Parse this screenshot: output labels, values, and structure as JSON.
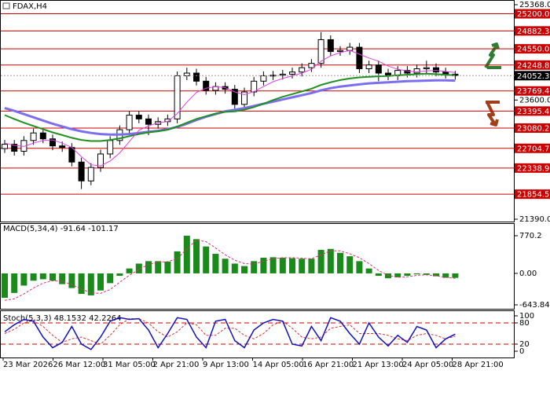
{
  "chart_data": [
    {
      "type": "candlestick",
      "title": "FDAX,H4",
      "open": [
        22700,
        22780,
        22650,
        22850,
        22990,
        22880,
        22750,
        22720,
        22450,
        22100,
        22350,
        22600,
        22850,
        23050,
        23320,
        23250,
        23150,
        23200,
        23250,
        24050,
        24100,
        23950,
        23780,
        23850,
        23800,
        23520,
        23750,
        23950,
        24050,
        24060,
        24080,
        24120,
        24200,
        24280,
        24720,
        24500,
        24520,
        24580,
        24180,
        24250,
        24100,
        24050,
        24150,
        24100,
        24180,
        24200,
        24120,
        24080
      ],
      "high": [
        22860,
        22860,
        22930,
        23070,
        23070,
        22960,
        22830,
        22800,
        22530,
        22430,
        22680,
        22930,
        23130,
        23400,
        23400,
        23330,
        23280,
        23330,
        24130,
        24200,
        24180,
        24030,
        23930,
        23930,
        23880,
        23830,
        24030,
        24130,
        24140,
        24160,
        24200,
        24280,
        24360,
        24860,
        24800,
        24600,
        24660,
        24660,
        24330,
        24330,
        24180,
        24230,
        24230,
        24260,
        24330,
        24280,
        24200,
        24140
      ],
      "low": [
        22620,
        22570,
        22570,
        22770,
        22800,
        22670,
        22640,
        22370,
        21950,
        22020,
        22270,
        22520,
        22770,
        22970,
        23170,
        22950,
        23070,
        23120,
        23170,
        23970,
        23870,
        23700,
        23700,
        23720,
        23440,
        23440,
        23670,
        23870,
        23970,
        23980,
        24000,
        24040,
        24120,
        24200,
        24420,
        24420,
        24440,
        24100,
        24100,
        23950,
        23970,
        23970,
        24020,
        24020,
        24100,
        24040,
        24000,
        23980
      ],
      "close": [
        22780,
        22650,
        22850,
        22990,
        22880,
        22750,
        22720,
        22450,
        22100,
        22350,
        22600,
        22850,
        23050,
        23320,
        23250,
        23150,
        23200,
        23250,
        24050,
        24100,
        23950,
        23780,
        23850,
        23800,
        23520,
        23750,
        23950,
        24050,
        24060,
        24080,
        24120,
        24200,
        24280,
        24720,
        24500,
        24520,
        24580,
        24180,
        24250,
        24100,
        24050,
        24150,
        24100,
        24180,
        24200,
        24120,
        24080,
        24052.3
      ],
      "overlays": [
        {
          "color": "#7b6ef0",
          "values": [
            23450,
            23400,
            23340,
            23280,
            23220,
            23160,
            23110,
            23060,
            23020,
            22990,
            22970,
            22960,
            22960,
            22970,
            22990,
            23010,
            23030,
            23060,
            23100,
            23160,
            23230,
            23290,
            23340,
            23390,
            23420,
            23450,
            23490,
            23530,
            23570,
            23610,
            23650,
            23690,
            23730,
            23780,
            23820,
            23850,
            23870,
            23890,
            23910,
            23920,
            23930,
            23940,
            23950,
            23955,
            23960,
            23965,
            23965,
            23960
          ]
        },
        {
          "color": "#1f8f1f",
          "values": [
            23320,
            23250,
            23180,
            23120,
            23060,
            23000,
            22950,
            22900,
            22860,
            22840,
            22840,
            22860,
            22890,
            22930,
            22970,
            23000,
            23020,
            23050,
            23110,
            23180,
            23250,
            23300,
            23350,
            23380,
            23390,
            23420,
            23470,
            23530,
            23600,
            23660,
            23710,
            23760,
            23810,
            23880,
            23930,
            23970,
            24000,
            24020,
            24030,
            24040,
            24045,
            24060,
            24070,
            24080,
            24090,
            24080,
            24070,
            24060
          ]
        },
        {
          "color": "#e040e0",
          "values": [
            22800,
            22760,
            22740,
            22800,
            22850,
            22860,
            22800,
            22720,
            22550,
            22400,
            22380,
            22470,
            22620,
            22830,
            23040,
            23120,
            23180,
            23200,
            23350,
            23560,
            23740,
            23820,
            23850,
            23830,
            23750,
            23700,
            23760,
            23850,
            23940,
            24000,
            24050,
            24100,
            24170,
            24320,
            24420,
            24480,
            24520,
            24450,
            24380,
            24320,
            24230,
            24170,
            24140,
            24120,
            24140,
            24150,
            24130,
            24110
          ]
        }
      ],
      "ylim": [
        21390,
        25368
      ],
      "yticks": [
        {
          "value": 25368,
          "label": "25368.0"
        },
        {
          "value": 23600,
          "label": "23600.0"
        },
        {
          "value": 21390,
          "label": "21390.0"
        }
      ],
      "levels": [
        {
          "value": 25200,
          "label": "25200.0"
        },
        {
          "value": 24882.3,
          "label": "24882.3"
        },
        {
          "value": 24550,
          "label": "24550.0"
        },
        {
          "value": 24248.8,
          "label": "24248.8"
        },
        {
          "value": 23769.4,
          "label": "23769.4"
        },
        {
          "value": 23395.4,
          "label": "23395.4"
        },
        {
          "value": 23080.2,
          "label": "23080.2"
        },
        {
          "value": 22704.7,
          "label": "22704.7"
        },
        {
          "value": 22338.9,
          "label": "22338.9"
        },
        {
          "value": 21854.5,
          "label": "21854.5"
        }
      ],
      "level_color": "#cc0000",
      "last_price": 24052.3
    },
    {
      "type": "histogram",
      "title": "MACD(5,34,4) -91.64 -101.17",
      "color": "#1a8a1a",
      "signal_color": "#e03070",
      "values": [
        -500,
        -400,
        -250,
        -150,
        -120,
        -150,
        -220,
        -300,
        -420,
        -450,
        -350,
        -200,
        -50,
        100,
        200,
        250,
        250,
        240,
        450,
        770,
        700,
        550,
        400,
        300,
        200,
        150,
        250,
        320,
        330,
        320,
        310,
        300,
        300,
        480,
        500,
        420,
        350,
        250,
        100,
        -50,
        -100,
        -80,
        -50,
        -20,
        -30,
        -60,
        -90,
        -91.64
      ],
      "signal": [
        -550,
        -520,
        -420,
        -300,
        -200,
        -150,
        -160,
        -230,
        -320,
        -400,
        -410,
        -330,
        -180,
        -40,
        80,
        180,
        230,
        240,
        300,
        500,
        680,
        650,
        520,
        380,
        270,
        200,
        190,
        250,
        300,
        320,
        320,
        310,
        300,
        380,
        460,
        460,
        400,
        320,
        200,
        60,
        -40,
        -80,
        -70,
        -40,
        -30,
        -50,
        -80,
        -101.17
      ],
      "ylim": [
        -643.84,
        770.2
      ],
      "yticks": [
        770.2,
        {
          "value": 0,
          "label": "0.00"
        },
        -643.84
      ]
    },
    {
      "type": "line",
      "title": "Stoch(5,3,3) 48.1532 42.2264",
      "k_color": "#1010c0",
      "d_color": "#e03030",
      "k": [
        55,
        75,
        90,
        85,
        40,
        10,
        25,
        70,
        20,
        5,
        40,
        85,
        95,
        90,
        92,
        60,
        10,
        50,
        95,
        90,
        40,
        10,
        85,
        90,
        30,
        10,
        60,
        80,
        90,
        85,
        20,
        15,
        70,
        30,
        95,
        85,
        50,
        20,
        80,
        40,
        15,
        45,
        25,
        70,
        60,
        10,
        35,
        48.1532
      ],
      "d": [
        50,
        62,
        80,
        87,
        70,
        45,
        25,
        35,
        40,
        30,
        20,
        45,
        75,
        92,
        92,
        80,
        55,
        40,
        55,
        80,
        75,
        45,
        45,
        65,
        65,
        45,
        35,
        50,
        75,
        85,
        65,
        40,
        35,
        40,
        65,
        70,
        75,
        50,
        50,
        50,
        45,
        35,
        30,
        45,
        50,
        45,
        35,
        42.2264
      ],
      "ylim": [
        0,
        100
      ],
      "yticks": [
        100,
        80,
        20,
        0
      ],
      "levels": [
        80,
        20
      ],
      "x_labels": [
        "23 Mar 2026",
        "26 Mar 12:00",
        "31 Mar 05:00",
        "2 Apr 21:00",
        "9 Apr 13:00",
        "14 Apr 05:00",
        "16 Apr 21:00",
        "21 Apr 13:00",
        "24 Apr 05:00",
        "28 Apr 21:00"
      ]
    }
  ]
}
